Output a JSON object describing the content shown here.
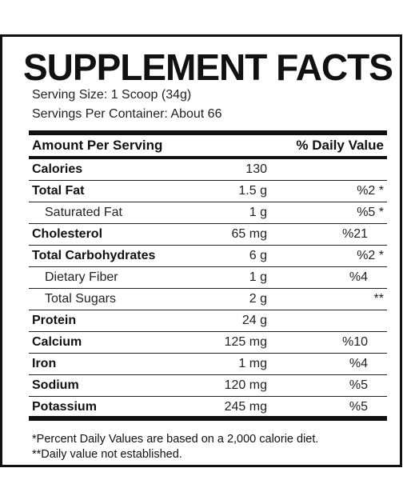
{
  "label": {
    "title": "SUPPLEMENT FACTS",
    "serving_size": "Serving Size: 1 Scoop (34g)",
    "servings_per_container": "Servings Per Container: About 66",
    "header_left": "Amount Per Serving",
    "header_right": "% Daily Value",
    "rows": [
      {
        "name": "Calories",
        "amount": "130",
        "dv": ""
      },
      {
        "name": "Total Fat",
        "amount": "1.5 g",
        "dv": "%2 *"
      },
      {
        "name": "Saturated Fat",
        "amount": "1 g",
        "dv": "%5 *"
      },
      {
        "name": "Cholesterol",
        "amount": "65 mg",
        "dv": "%21"
      },
      {
        "name": "Total Carbohydrates",
        "amount": "6 g",
        "dv": "%2 *"
      },
      {
        "name": "Dietary Fiber",
        "amount": "1 g",
        "dv": "%4"
      },
      {
        "name": "Total Sugars",
        "amount": "2 g",
        "dv": "**"
      },
      {
        "name": "Protein",
        "amount": "24 g",
        "dv": ""
      },
      {
        "name": "Calcium",
        "amount": "125 mg",
        "dv": "%10"
      },
      {
        "name": "Iron",
        "amount": "1 mg",
        "dv": "%4"
      },
      {
        "name": "Sodium",
        "amount": "120 mg",
        "dv": "%5"
      },
      {
        "name": "Potassium",
        "amount": "245 mg",
        "dv": "%5"
      }
    ],
    "footnote_1": "*Percent Daily Values are based on a 2,000 calorie diet.",
    "footnote_2": "**Daily value not established."
  }
}
